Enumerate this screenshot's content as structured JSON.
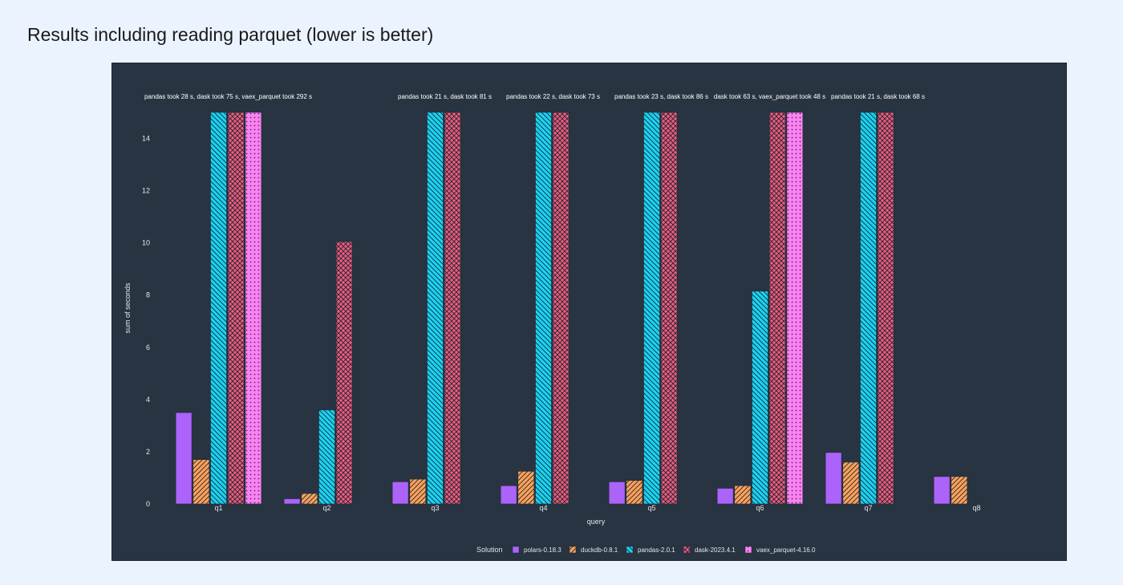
{
  "page": {
    "title": "Results including reading parquet (lower is better)"
  },
  "chart_data": {
    "type": "bar",
    "categories": [
      "q1",
      "q2",
      "q3",
      "q4",
      "q5",
      "q6",
      "q7",
      "q8"
    ],
    "xlabel": "query",
    "ylabel": "sum of seconds",
    "ylim": [
      0,
      15
    ],
    "yticks": [
      0,
      2,
      4,
      6,
      8,
      10,
      12,
      14
    ],
    "grid": false,
    "legend": {
      "title": "Solution",
      "placement": "bottom"
    },
    "series": [
      {
        "name": "polars-0.18.3",
        "color": "#ab63fa",
        "pattern": "none",
        "values": [
          3.5,
          0.2,
          0.85,
          0.7,
          0.85,
          0.6,
          1.97,
          1.05
        ]
      },
      {
        "name": "duckdb-0.8.1",
        "color": "#ffa15a",
        "pattern": "diagonal",
        "values": [
          1.7,
          0.4,
          0.95,
          1.25,
          0.9,
          0.7,
          1.6,
          1.05
        ]
      },
      {
        "name": "pandas-2.0.1",
        "color": "#19d3f3",
        "pattern": "backslash",
        "values": [
          15,
          3.6,
          15,
          15,
          15,
          8.15,
          15,
          null
        ]
      },
      {
        "name": "dask-2023.4.1",
        "color": "#ef5a7d",
        "pattern": "crosshatch",
        "values": [
          15,
          10.05,
          15,
          15,
          15,
          15,
          15,
          null
        ]
      },
      {
        "name": "vaex_parquet-4.16.0",
        "color": "#fb82f3",
        "pattern": "dots",
        "values": [
          15,
          null,
          null,
          null,
          null,
          15,
          null,
          null
        ]
      }
    ],
    "annotations": [
      {
        "category": "q1",
        "text": "pandas took 28 s, dask took 75 s, vaex_parquet took 292 s"
      },
      {
        "category": "q3",
        "text": "pandas took 21 s, dask took 81 s"
      },
      {
        "category": "q4",
        "text": "pandas took 22 s, dask took 73 s"
      },
      {
        "category": "q5",
        "text": "pandas took 23 s, dask took 86 s"
      },
      {
        "category": "q6",
        "text": "dask took 63 s, vaex_parquet took 48 s"
      },
      {
        "category": "q7",
        "text": "pandas took 21 s, dask took 68 s"
      }
    ]
  }
}
